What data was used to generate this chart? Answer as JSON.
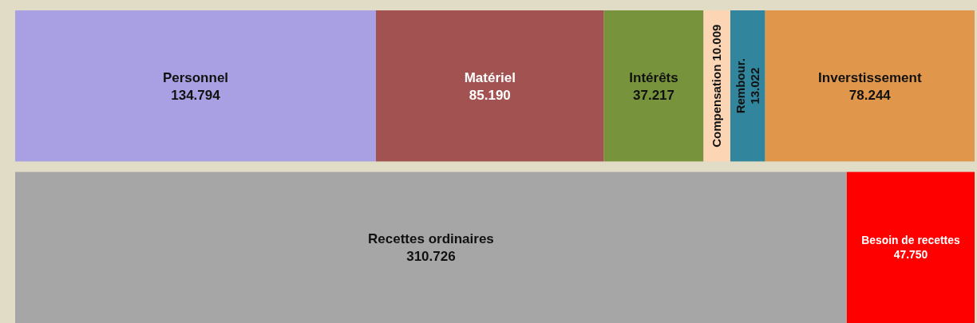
{
  "chart_data": {
    "type": "bar",
    "orientation": "horizontal",
    "stacked": true,
    "categories": [
      null,
      null
    ],
    "series": [
      {
        "name": "Personnel",
        "color": "#a8a0e2",
        "values": [
          134.794,
          null
        ],
        "value_labels": [
          "134.794",
          null
        ]
      },
      {
        "name": "Matériel",
        "color": "#a35252",
        "values": [
          85.19,
          null
        ],
        "value_labels": [
          "85.190",
          null
        ]
      },
      {
        "name": "Intérêts",
        "color": "#77933c",
        "values": [
          37.217,
          null
        ],
        "value_labels": [
          "37.217",
          null
        ]
      },
      {
        "name": "Compensation",
        "color": "#fcd5b5",
        "values": [
          10.009,
          null
        ],
        "value_labels": [
          "10.009",
          null
        ]
      },
      {
        "name": "Rembour.",
        "color": "#31859c",
        "values": [
          13.022,
          null
        ],
        "value_labels": [
          "13.022",
          null
        ]
      },
      {
        "name": "Inverstissement",
        "color": "#e0974b",
        "values": [
          78.244,
          null
        ],
        "value_labels": [
          "78.244",
          null
        ]
      },
      {
        "name": "Recettes ordinaires",
        "color": "#a6a6a6",
        "values": [
          null,
          310.726
        ],
        "value_labels": [
          null,
          "310.726"
        ]
      },
      {
        "name": "Besoin de recettes",
        "color": "#ff0000",
        "values": [
          null,
          47.75
        ],
        "value_labels": [
          null,
          "47.750"
        ]
      }
    ]
  }
}
